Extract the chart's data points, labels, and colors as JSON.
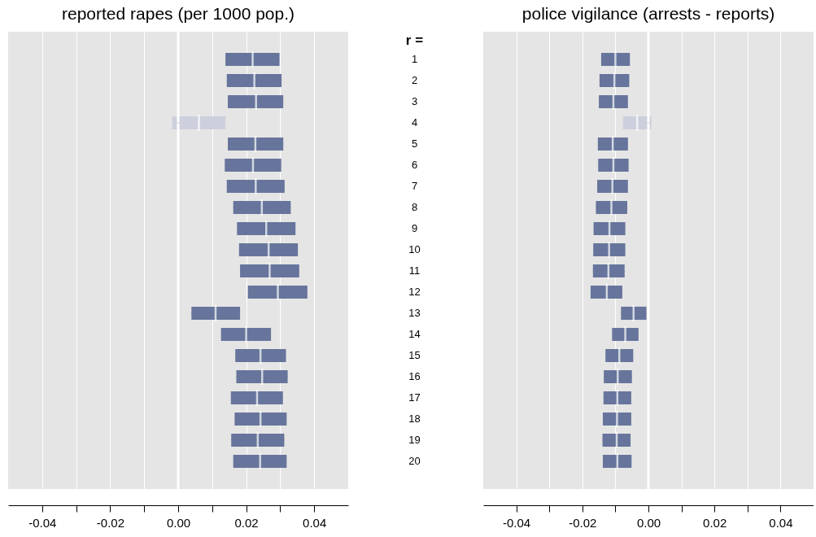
{
  "chart_data": [
    {
      "type": "box",
      "title": "reported rapes (per 1000 pop.)",
      "orientation": "horizontal",
      "tick_labels": "x",
      "grid": "x",
      "categories": [
        "1",
        "2",
        "3",
        "4",
        "5",
        "6",
        "7",
        "8",
        "9",
        "10",
        "11",
        "12",
        "13",
        "14",
        "15",
        "16",
        "17",
        "18",
        "19",
        "20"
      ],
      "colors": [
        "#67759c",
        "#67759c",
        "#67759c",
        "#cdd0dc",
        "#67759c",
        "#67759c",
        "#67759c",
        "#67759c",
        "#67759c",
        "#67759c",
        "#67759c",
        "#67759c",
        "#67759c",
        "#67759c",
        "#67759c",
        "#67759c",
        "#67759c",
        "#67759c",
        "#67759c",
        "#67759c"
      ],
      "boxes": [
        {
          "low": 0.0139,
          "q1": 0.0139,
          "median": 0.0219,
          "q3": 0.0298,
          "high": 0.0298
        },
        {
          "low": 0.0143,
          "q1": 0.0143,
          "median": 0.0224,
          "q3": 0.0304,
          "high": 0.0304
        },
        {
          "low": 0.0146,
          "q1": 0.0146,
          "median": 0.0229,
          "q3": 0.0309,
          "high": 0.0309
        },
        {
          "low": -0.0018,
          "q1": -0.0018,
          "median": 0.0061,
          "q3": 0.0139,
          "high": 0.0139
        },
        {
          "low": 0.0146,
          "q1": 0.0146,
          "median": 0.0227,
          "q3": 0.0309,
          "high": 0.0309
        },
        {
          "low": 0.0137,
          "q1": 0.0137,
          "median": 0.022,
          "q3": 0.0303,
          "high": 0.0303
        },
        {
          "low": 0.0143,
          "q1": 0.0143,
          "median": 0.0228,
          "q3": 0.0313,
          "high": 0.0313
        },
        {
          "low": 0.0162,
          "q1": 0.0162,
          "median": 0.0246,
          "q3": 0.0331,
          "high": 0.0331
        },
        {
          "low": 0.0173,
          "q1": 0.0173,
          "median": 0.0259,
          "q3": 0.0345,
          "high": 0.0345
        },
        {
          "low": 0.0179,
          "q1": 0.0179,
          "median": 0.0266,
          "q3": 0.0352,
          "high": 0.0352
        },
        {
          "low": 0.0182,
          "q1": 0.0182,
          "median": 0.0269,
          "q3": 0.0356,
          "high": 0.0356
        },
        {
          "low": 0.0205,
          "q1": 0.0205,
          "median": 0.0293,
          "q3": 0.038,
          "high": 0.038
        },
        {
          "low": 0.0039,
          "q1": 0.0039,
          "median": 0.011,
          "q3": 0.0182,
          "high": 0.0182
        },
        {
          "low": 0.0126,
          "q1": 0.0126,
          "median": 0.02,
          "q3": 0.0273,
          "high": 0.0273
        },
        {
          "low": 0.0168,
          "q1": 0.0168,
          "median": 0.0242,
          "q3": 0.0317,
          "high": 0.0317
        },
        {
          "low": 0.0171,
          "q1": 0.0171,
          "median": 0.0247,
          "q3": 0.0322,
          "high": 0.0322
        },
        {
          "low": 0.0155,
          "q1": 0.0155,
          "median": 0.0232,
          "q3": 0.0308,
          "high": 0.0308
        },
        {
          "low": 0.0166,
          "q1": 0.0166,
          "median": 0.0242,
          "q3": 0.0319,
          "high": 0.0319
        },
        {
          "low": 0.0156,
          "q1": 0.0156,
          "median": 0.0234,
          "q3": 0.0312,
          "high": 0.0312
        },
        {
          "low": 0.0162,
          "q1": 0.0162,
          "median": 0.0241,
          "q3": 0.0319,
          "high": 0.0319
        }
      ],
      "xlim": [
        -0.05,
        0.05
      ],
      "xticks": [
        -0.04,
        {
          "value": -0.03,
          "label": null
        },
        -0.02,
        {
          "value": -0.01,
          "label": null
        },
        {
          "value": 0,
          "label": "0.00"
        },
        {
          "value": 0.01,
          "label": null
        },
        0.02,
        {
          "value": 0.03,
          "label": null
        },
        0.04
      ],
      "ref_lines": [
        {
          "axis": "x",
          "value": 0,
          "color": "#ffffff"
        }
      ]
    },
    {
      "type": "box",
      "title": "police vigilance (arrests - reports)",
      "ylabel": "r =",
      "orientation": "horizontal",
      "grid": "x",
      "categories": [
        "1",
        "2",
        "3",
        "4",
        "5",
        "6",
        "7",
        "8",
        "9",
        "10",
        "11",
        "12",
        "13",
        "14",
        "15",
        "16",
        "17",
        "18",
        "19",
        "20"
      ],
      "colors": [
        "#67759c",
        "#67759c",
        "#67759c",
        "#cdd0dc",
        "#67759c",
        "#67759c",
        "#67759c",
        "#67759c",
        "#67759c",
        "#67759c",
        "#67759c",
        "#67759c",
        "#67759c",
        "#67759c",
        "#67759c",
        "#67759c",
        "#67759c",
        "#67759c",
        "#67759c",
        "#67759c"
      ],
      "boxes": [
        {
          "low": -0.0143,
          "q1": -0.0143,
          "median": -0.01,
          "q3": -0.0056,
          "high": -0.0056
        },
        {
          "low": -0.0148,
          "q1": -0.0148,
          "median": -0.0103,
          "q3": -0.0058,
          "high": -0.0058
        },
        {
          "low": -0.015,
          "q1": -0.015,
          "median": -0.0106,
          "q3": -0.0062,
          "high": -0.0062
        },
        {
          "low": -0.0077,
          "q1": -0.0077,
          "median": -0.0034,
          "q3": 0.0009,
          "high": 0.0009
        },
        {
          "low": -0.0153,
          "q1": -0.0153,
          "median": -0.0108,
          "q3": -0.0062,
          "high": -0.0062
        },
        {
          "low": -0.0152,
          "q1": -0.0152,
          "median": -0.0106,
          "q3": -0.006,
          "high": -0.006
        },
        {
          "low": -0.0155,
          "q1": -0.0155,
          "median": -0.0109,
          "q3": -0.0062,
          "high": -0.0062
        },
        {
          "low": -0.0159,
          "q1": -0.0159,
          "median": -0.0112,
          "q3": -0.0064,
          "high": -0.0064
        },
        {
          "low": -0.0166,
          "q1": -0.0166,
          "median": -0.0118,
          "q3": -0.007,
          "high": -0.007
        },
        {
          "low": -0.0167,
          "q1": -0.0167,
          "median": -0.0119,
          "q3": -0.007,
          "high": -0.007
        },
        {
          "low": -0.0168,
          "q1": -0.0168,
          "median": -0.0121,
          "q3": -0.0072,
          "high": -0.0072
        },
        {
          "low": -0.0175,
          "q1": -0.0175,
          "median": -0.0126,
          "q3": -0.0079,
          "high": -0.0079
        },
        {
          "low": -0.0083,
          "q1": -0.0083,
          "median": -0.0045,
          "q3": -0.0006,
          "high": -0.0006
        },
        {
          "low": -0.011,
          "q1": -0.011,
          "median": -0.007,
          "q3": -0.003,
          "high": -0.003
        },
        {
          "low": -0.013,
          "q1": -0.013,
          "median": -0.0088,
          "q3": -0.0046,
          "high": -0.0046
        },
        {
          "low": -0.0135,
          "q1": -0.0135,
          "median": -0.0093,
          "q3": -0.005,
          "high": -0.005
        },
        {
          "low": -0.0136,
          "q1": -0.0136,
          "median": -0.0094,
          "q3": -0.0052,
          "high": -0.0052
        },
        {
          "low": -0.0138,
          "q1": -0.0138,
          "median": -0.0095,
          "q3": -0.0052,
          "high": -0.0052
        },
        {
          "low": -0.0139,
          "q1": -0.0139,
          "median": -0.0096,
          "q3": -0.0054,
          "high": -0.0054
        },
        {
          "low": -0.0138,
          "q1": -0.0138,
          "median": -0.0094,
          "q3": -0.0051,
          "high": -0.0051
        }
      ],
      "xlim": [
        -0.05,
        0.05
      ],
      "xticks": [
        -0.04,
        {
          "value": -0.03,
          "label": null
        },
        -0.02,
        {
          "value": -0.01,
          "label": null
        },
        {
          "value": 0,
          "label": "0.00"
        },
        {
          "value": 0.01,
          "label": null
        },
        0.02,
        {
          "value": 0.03,
          "label": null
        },
        0.04
      ],
      "ref_lines": [
        {
          "axis": "x",
          "value": 0,
          "color": "#ffffff"
        }
      ]
    }
  ]
}
